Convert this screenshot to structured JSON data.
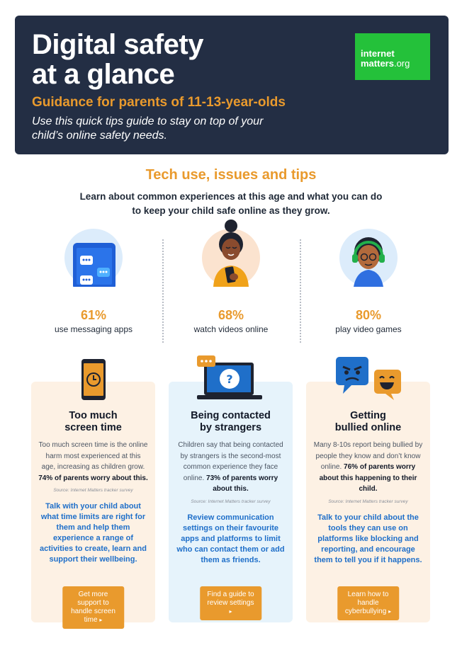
{
  "header": {
    "title": "Digital safety\nat a glance",
    "subtitle": "Guidance for parents of 11-13-year-olds",
    "intro": "Use this quick tips guide to stay on top of your child’s online safety needs.",
    "logo_line1": "internet",
    "logo_line2": "matters",
    "logo_suffix": ".org"
  },
  "section": {
    "title": "Tech use, issues and tips",
    "intro": "Learn about common experiences at this age and what you can do to keep your child safe online as they grow."
  },
  "stats": [
    {
      "value": "61%",
      "label": "use messaging apps"
    },
    {
      "value": "68%",
      "label": "watch videos online"
    },
    {
      "value": "80%",
      "label": "play video games"
    }
  ],
  "cards": [
    {
      "title": "Too much\nscreen time",
      "body": "Too much screen time is the online harm most experienced at this age, increasing as children grow.",
      "body_bold": "74% of parents worry about this.",
      "source": "Source: Internet Matters tracker survey",
      "tip": "Talk with your child about what time limits are right for them and help them experience a range of activities to create, learn and support their wellbeing.",
      "button": "Get more support to\nhandle screen time"
    },
    {
      "title": "Being contacted\nby strangers",
      "body": "Children say that being contacted by strangers is the second-most common experience they face online.",
      "body_bold": "73% of parents worry about this.",
      "source": "Source: Internet Matters tracker survey",
      "tip": "Review communication settings on their favourite apps and platforms to limit who can contact them or add them as friends.",
      "button": "Find a guide to\nreview settings"
    },
    {
      "title": "Getting\nbullied online",
      "body": "Many 8-10s report being bullied by people they know and don’t know online.",
      "body_bold": "76% of parents worry about this happening to their child.",
      "source": "Source: Internet Matters tracker survey",
      "tip": "Talk to your child about the tools they can use on platforms like blocking and reporting, and encourage them to tell you if it happens.",
      "button": "Learn how to handle\ncyberbullying"
    }
  ],
  "colors": {
    "header_bg": "#232e44",
    "accent_orange": "#e99a2d",
    "logo_green": "#24c13a",
    "tip_blue": "#1f6fc9",
    "card_peach": "#fdf1e4",
    "card_blue": "#e6f3fb"
  },
  "icons": {
    "stat1": "phone-messaging-icon",
    "stat2": "person-with-phone-icon",
    "stat3": "gamer-headset-icon",
    "card1": "phone-clock-icon",
    "card2": "laptop-question-icon",
    "card3": "angry-and-laughing-chat-icon"
  }
}
